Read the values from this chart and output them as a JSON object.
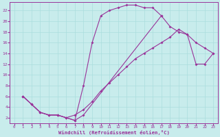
{
  "xlabel": "Windchill (Refroidissement éolien,°C)",
  "background_color": "#c8ecec",
  "grid_color": "#aadddd",
  "line_color": "#993399",
  "xlim": [
    -0.5,
    23.5
  ],
  "ylim": [
    1,
    23.5
  ],
  "xticks": [
    0,
    1,
    2,
    3,
    4,
    5,
    6,
    7,
    8,
    9,
    10,
    11,
    12,
    13,
    14,
    15,
    16,
    17,
    18,
    19,
    20,
    21,
    22,
    23
  ],
  "yticks": [
    2,
    4,
    6,
    8,
    10,
    12,
    14,
    16,
    18,
    20,
    22
  ],
  "line1_x": [
    1,
    2,
    3,
    4,
    5,
    6,
    7,
    8,
    9,
    10,
    11,
    12,
    13,
    14,
    15,
    16,
    17
  ],
  "line1_y": [
    6,
    4.5,
    3,
    2.5,
    2.5,
    2,
    1.5,
    8,
    16,
    21,
    22,
    22.5,
    23,
    23,
    22.5,
    22.5,
    21
  ],
  "line2_x": [
    1,
    2,
    3,
    4,
    5,
    6,
    7,
    8,
    17,
    18,
    19,
    20,
    21,
    22,
    23
  ],
  "line2_y": [
    6,
    4.5,
    3,
    2.5,
    2.5,
    2,
    1.5,
    2.5,
    21,
    19,
    18,
    17.5,
    12,
    12,
    14
  ],
  "line3_x": [
    1,
    2,
    3,
    4,
    5,
    6,
    7,
    8,
    9,
    10,
    11,
    12,
    13,
    14,
    15,
    16,
    17,
    18,
    19,
    20,
    21,
    22,
    23
  ],
  "line3_y": [
    6,
    4.5,
    3,
    2.5,
    2.5,
    2,
    2.5,
    3.5,
    5,
    7,
    8.5,
    10,
    11.5,
    13,
    14,
    15,
    16,
    17,
    18.5,
    17.5,
    16,
    15,
    14
  ],
  "marker": "D",
  "markersize": 2,
  "linewidth": 0.8
}
